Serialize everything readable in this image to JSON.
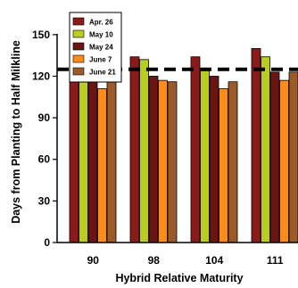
{
  "chart_data": {
    "type": "bar",
    "title": "",
    "xlabel": "Hybrid Relative Maturity",
    "ylabel": "Days from Planting to Half Milkline",
    "categories": [
      "90",
      "98",
      "104",
      "111"
    ],
    "yticks": [
      0,
      30,
      60,
      90,
      120,
      150
    ],
    "ylim": [
      0,
      175
    ],
    "grid": false,
    "legend_position": "top-left",
    "series": [
      {
        "name": "Apr. 26",
        "color": "#8b1a1a",
        "values": [
          127,
          134,
          134,
          140
        ]
      },
      {
        "name": "May 10",
        "color": "#b8cc22",
        "values": [
          120,
          132,
          124,
          134
        ]
      },
      {
        "name": "May 24",
        "color": "#6b1414",
        "values": [
          117,
          120,
          120,
          123
        ]
      },
      {
        "name": "June  7",
        "color": "#ff8c1a",
        "values": [
          111,
          117,
          111,
          117
        ]
      },
      {
        "name": "June 21",
        "color": "#9c5a28",
        "values": [
          116,
          116,
          116,
          123
        ]
      }
    ],
    "reference_line": {
      "value": 125,
      "style": "dashed",
      "color": "#000000"
    }
  }
}
